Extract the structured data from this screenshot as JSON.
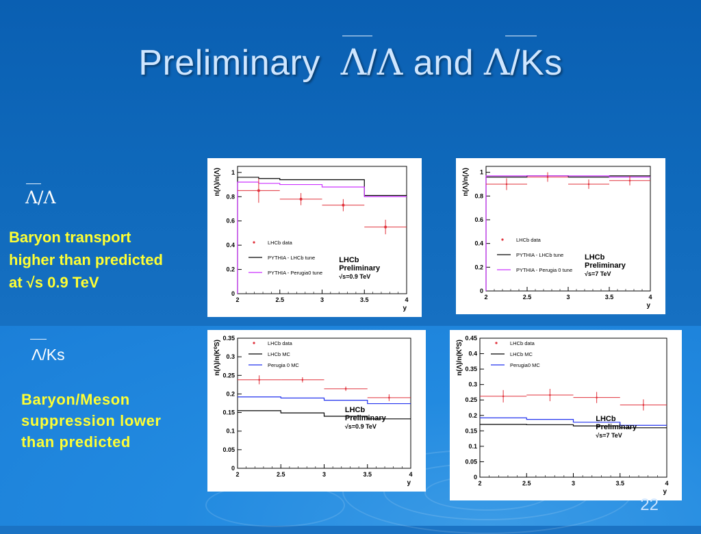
{
  "slide": {
    "title_prefix": "Preliminary",
    "title_sym1": "Λ",
    "title_slash": "/",
    "title_sym2": "Λ",
    "title_and": " and ",
    "title_sym3": "Λ",
    "title_suffix": "/Ks",
    "section1_label": "Λ/Λ",
    "section1_note": [
      "Baryon transport",
      "higher than predicted",
      "at √s 0.9 TeV"
    ],
    "section2_label": "Λ/Ks",
    "section2_note": [
      "Baryon/Meson",
      "suppression lower",
      "than predicted"
    ],
    "page_number": "22"
  },
  "colors": {
    "data": "#e0303a",
    "mc1": "#000000",
    "mc2_purple": "#cc33ff",
    "mc2_blue": "#2233ee"
  },
  "chart_data": [
    {
      "type": "line",
      "ylabel": "n(Λ)/n(Λ)",
      "xlabel": "y",
      "xlim": [
        2,
        4
      ],
      "ylim": [
        0,
        1.05
      ],
      "xticks": [
        "2",
        "2.5",
        "3",
        "3.5",
        "4"
      ],
      "yticks": [
        "0",
        "0.2",
        "0.4",
        "0.6",
        "0.8",
        "1"
      ],
      "legend": [
        "LHCb data",
        "PYTHIA - LHCb tune",
        "PYTHIA - Perugia0 tune"
      ],
      "annotation": [
        "LHCb",
        "Preliminary",
        "√s=0.9 TeV"
      ],
      "data": {
        "x": [
          2.25,
          2.75,
          3.25,
          3.75
        ],
        "xerr": 0.25,
        "y": [
          0.85,
          0.78,
          0.73,
          0.55
        ],
        "yerr": [
          0.1,
          0.05,
          0.05,
          0.06
        ]
      },
      "series": [
        {
          "name": "PYTHIA - LHCb tune",
          "edges": [
            2,
            2.25,
            2.5,
            3,
            3.5,
            4
          ],
          "values": [
            0.96,
            0.95,
            0.94,
            0.94,
            0.81
          ]
        },
        {
          "name": "PYTHIA - Perugia0 tune",
          "edges": [
            2,
            2.25,
            2.5,
            3,
            3.5,
            4
          ],
          "values": [
            0.92,
            0.91,
            0.9,
            0.88,
            0.8
          ]
        }
      ]
    },
    {
      "type": "line",
      "ylabel": "n(Λ)/n(Λ)",
      "xlabel": "y",
      "xlim": [
        2,
        4
      ],
      "ylim": [
        0,
        1.05
      ],
      "xticks": [
        "2",
        "2.5",
        "3",
        "3.5",
        "4"
      ],
      "yticks": [
        "0",
        "0.2",
        "0.4",
        "0.6",
        "0.8",
        "1"
      ],
      "legend": [
        "LHCb data",
        "PYTHIA - LHCb tune",
        "PYTHIA - Perugia 0 tune"
      ],
      "annotation": [
        "LHCb",
        "Preliminary",
        "√s=7 TeV"
      ],
      "data": {
        "x": [
          2.25,
          2.75,
          3.25,
          3.75
        ],
        "xerr": 0.25,
        "y": [
          0.9,
          0.96,
          0.9,
          0.93
        ],
        "yerr": [
          0.05,
          0.04,
          0.04,
          0.04
        ]
      },
      "series": [
        {
          "name": "PYTHIA - LHCb tune",
          "edges": [
            2,
            2.5,
            3,
            3.5,
            4
          ],
          "values": [
            0.96,
            0.97,
            0.96,
            0.97
          ]
        },
        {
          "name": "PYTHIA - Perugia 0 tune",
          "edges": [
            2,
            2.5,
            3,
            3.5,
            4
          ],
          "values": [
            0.97,
            0.97,
            0.97,
            0.96
          ]
        }
      ]
    },
    {
      "type": "line",
      "ylabel": "n(Λ)/n(K⁰S)",
      "xlabel": "y",
      "xlim": [
        2,
        4
      ],
      "ylim": [
        0,
        0.35
      ],
      "xticks": [
        "2",
        "2.5",
        "3",
        "3.5",
        "4"
      ],
      "yticks": [
        "0",
        "0.05",
        "0.1",
        "0.15",
        "0.2",
        "0.25",
        "0.3",
        "0.35"
      ],
      "legend": [
        "LHCb data",
        "LHCb MC",
        "Perugia 0 MC"
      ],
      "annotation": [
        "LHCb",
        "Preliminary",
        "√s=0.9 TeV"
      ],
      "data": {
        "x": [
          2.25,
          2.75,
          3.25,
          3.75
        ],
        "xerr": 0.25,
        "y": [
          0.238,
          0.238,
          0.214,
          0.19
        ],
        "yerr": [
          0.012,
          0.007,
          0.006,
          0.009
        ]
      },
      "series": [
        {
          "name": "LHCb MC",
          "edges": [
            2,
            2.5,
            3,
            3.5,
            4
          ],
          "values": [
            0.155,
            0.149,
            0.14,
            0.133
          ]
        },
        {
          "name": "Perugia 0 MC",
          "edges": [
            2,
            2.5,
            3,
            3.5,
            4
          ],
          "values": [
            0.192,
            0.189,
            0.183,
            0.174
          ]
        }
      ]
    },
    {
      "type": "line",
      "ylabel": "n(Λ)/n(K⁰S)",
      "xlabel": "y",
      "xlim": [
        2,
        4
      ],
      "ylim": [
        0,
        0.45
      ],
      "xticks": [
        "2",
        "2.5",
        "3",
        "3.5",
        "4"
      ],
      "yticks": [
        "0",
        "0.05",
        "0.1",
        "0.15",
        "0.2",
        "0.25",
        "0.3",
        "0.35",
        "0.4",
        "0.45"
      ],
      "legend": [
        "LHCb data",
        "LHCb MC",
        "Perugia0 MC"
      ],
      "annotation": [
        "LHCb",
        "Preliminary",
        "√s=7 TeV"
      ],
      "data": {
        "x": [
          2.25,
          2.75,
          3.25,
          3.75
        ],
        "xerr": 0.25,
        "y": [
          0.262,
          0.266,
          0.258,
          0.234
        ],
        "yerr": [
          0.02,
          0.02,
          0.018,
          0.018
        ]
      },
      "series": [
        {
          "name": "LHCb MC",
          "edges": [
            2,
            2.5,
            3,
            3.5,
            4
          ],
          "values": [
            0.171,
            0.17,
            0.166,
            0.16
          ]
        },
        {
          "name": "Perugia0 MC",
          "edges": [
            2,
            2.5,
            3,
            3.5,
            4
          ],
          "values": [
            0.192,
            0.187,
            0.178,
            0.168
          ]
        }
      ]
    }
  ]
}
